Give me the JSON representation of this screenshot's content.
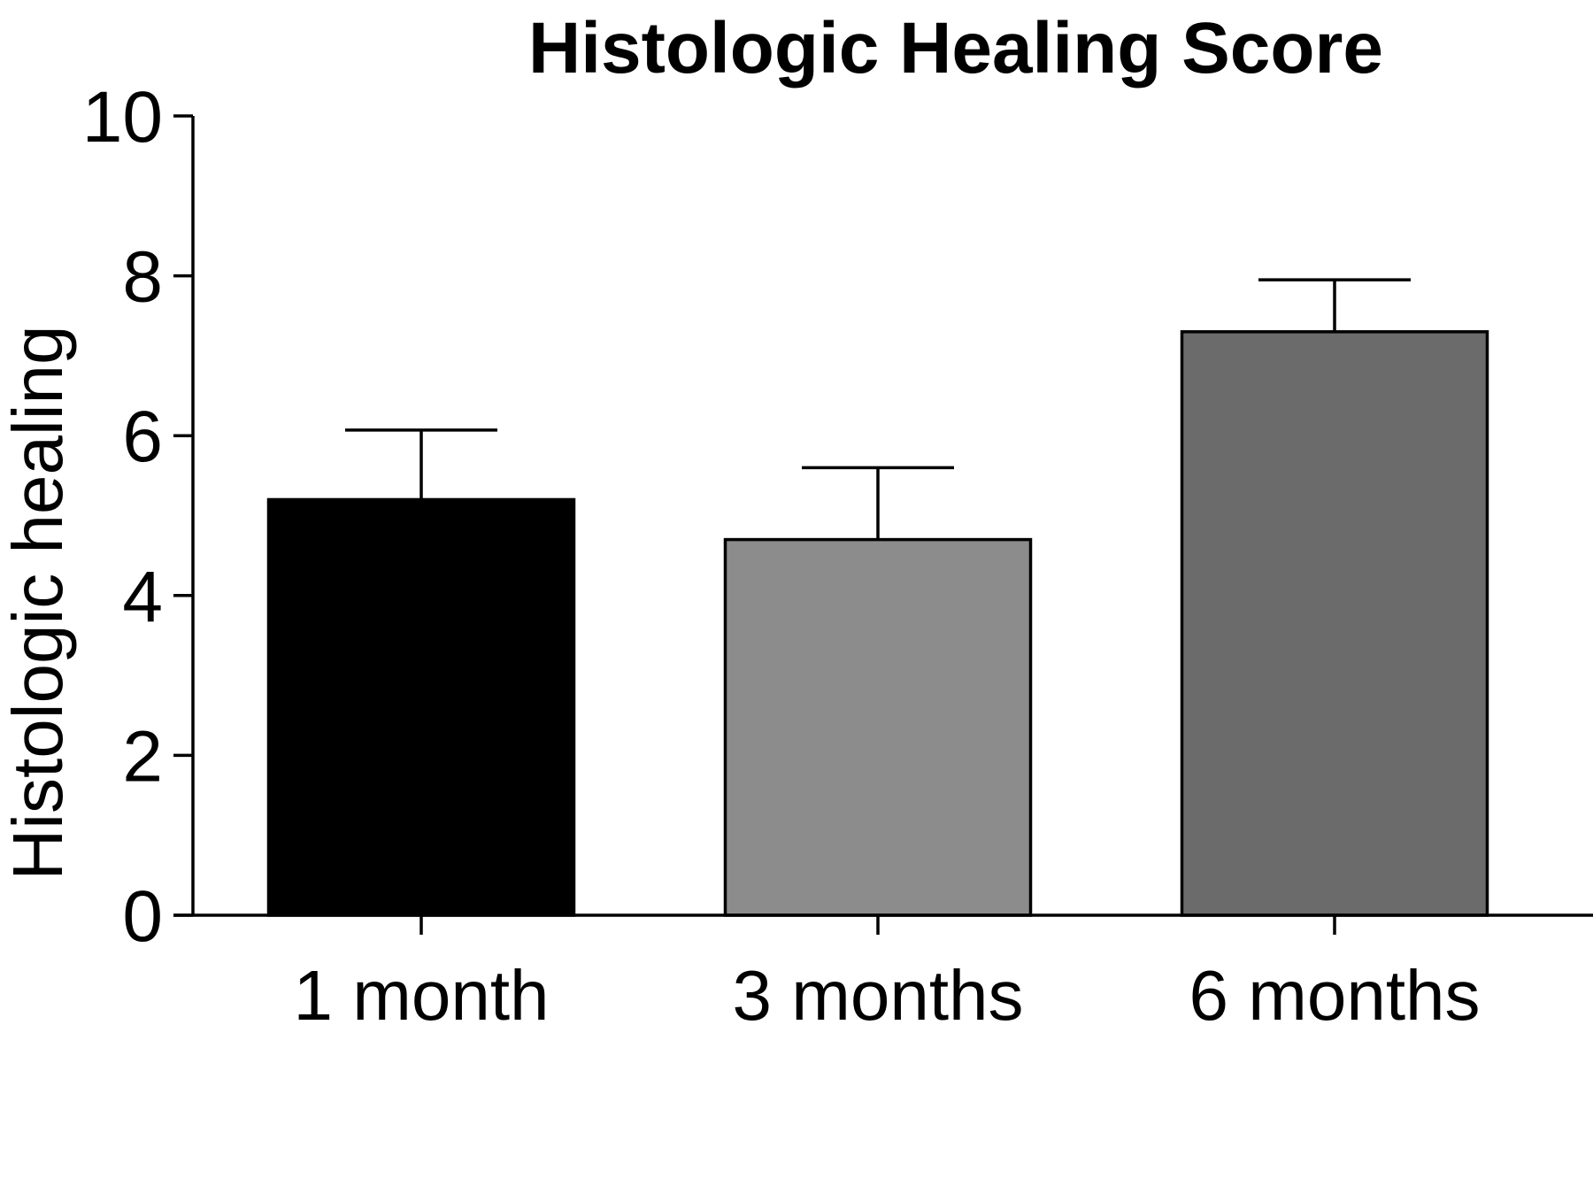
{
  "chart_data": {
    "type": "bar",
    "title": "Histologic Healing Score",
    "ylabel": "Histologic healing",
    "xlabel": "",
    "categories": [
      "1 month",
      "3 months",
      "6 months"
    ],
    "values": [
      5.2,
      4.7,
      7.3
    ],
    "error_upper": [
      6.07,
      5.6,
      7.95
    ],
    "bar_colors": [
      "#000000",
      "#8c8c8c",
      "#6b6b6b"
    ],
    "ylim": [
      0,
      10
    ],
    "yticks": [
      0,
      2,
      4,
      6,
      8,
      10
    ],
    "grid": false,
    "legend": "none"
  }
}
